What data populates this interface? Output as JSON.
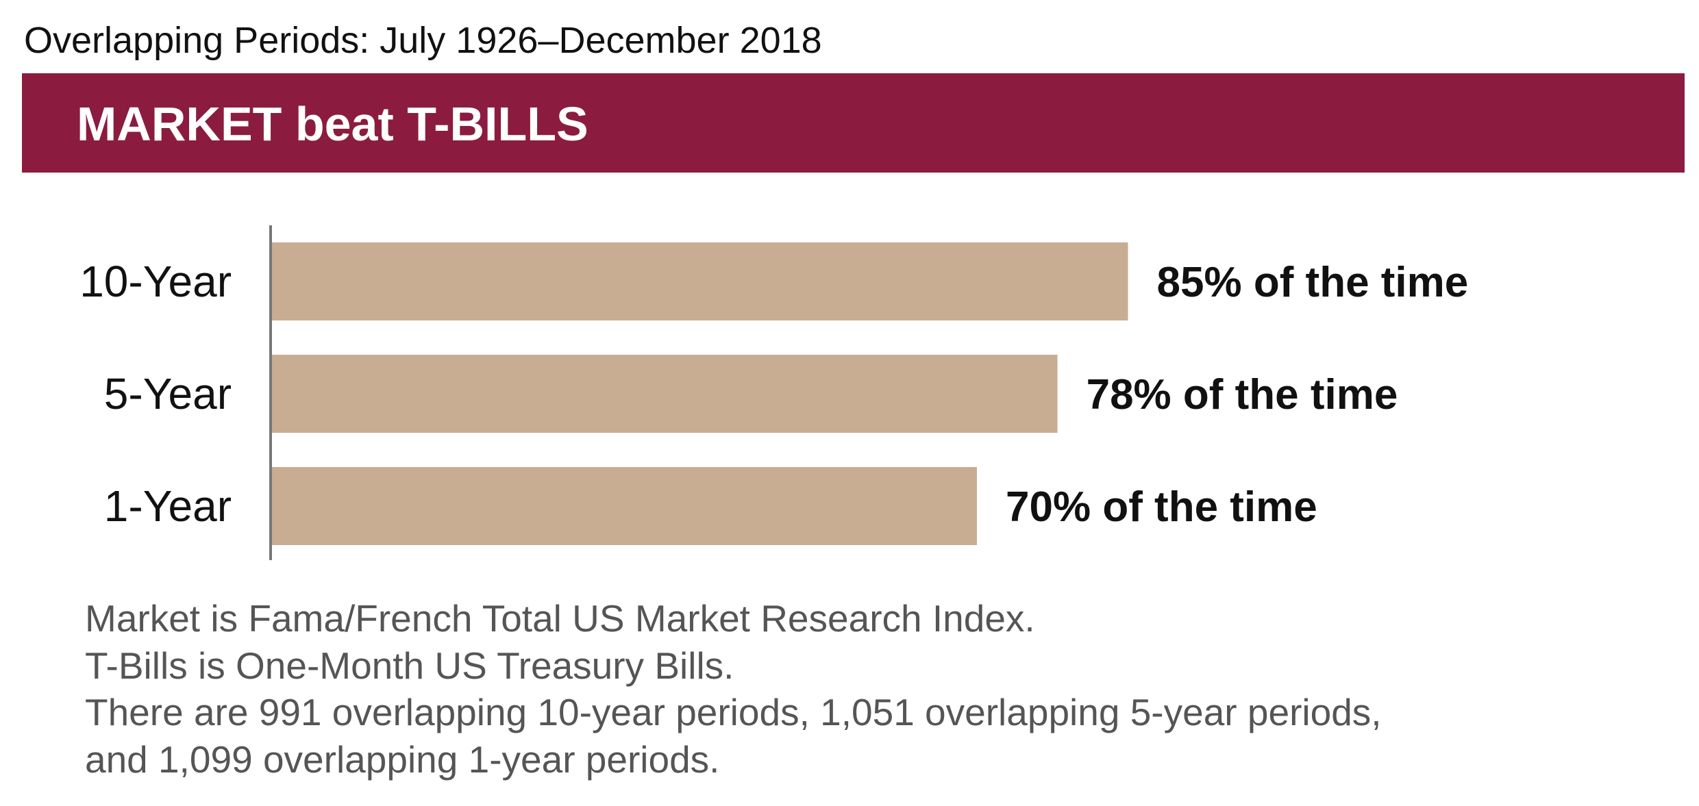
{
  "subtitle": "Overlapping Periods: July 1926–December 2018",
  "chart_data": {
    "type": "bar",
    "orientation": "horizontal",
    "title": "MARKET beat T-BILLS",
    "categories": [
      "10-Year",
      "5-Year",
      "1-Year"
    ],
    "values": [
      85,
      78,
      70
    ],
    "value_labels": [
      "85% of the time",
      "78% of the time",
      "70% of the time"
    ],
    "color": "#c8ad93",
    "xlim": [
      0,
      100
    ]
  },
  "notes": [
    "Market is Fama/French Total US Market Research Index.",
    "T-Bills is One-Month US Treasury Bills.",
    "There are 991 overlapping 10-year periods, 1,051 overlapping 5-year periods,",
    "and 1,099 overlapping 1-year periods."
  ]
}
